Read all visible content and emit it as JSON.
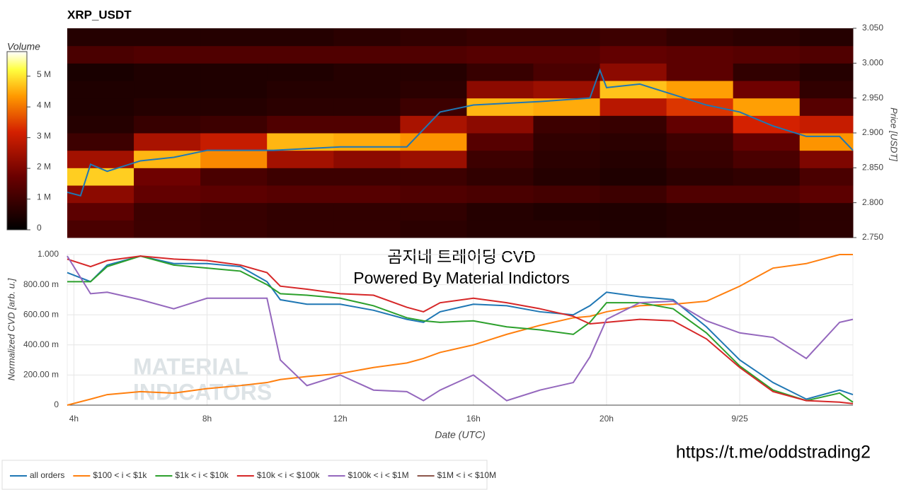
{
  "chart_data": [
    {
      "type": "heatmap",
      "title": "XRP_USDT",
      "colorbar_title": "Volume",
      "y_label": "Price [USDT]",
      "xlim": [
        3.8,
        27.4
      ],
      "x_edges": [
        3.8,
        5.8,
        7.8,
        9.8,
        11.8,
        13.8,
        15.8,
        17.8,
        19.8,
        21.8,
        23.8,
        25.8,
        27.4
      ],
      "y_edges": [
        2.75,
        2.775,
        2.8,
        2.825,
        2.85,
        2.875,
        2.9,
        2.925,
        2.95,
        2.975,
        3.0,
        3.025,
        3.05
      ],
      "z": [
        [
          1.2,
          1.0,
          0.9,
          0.8,
          0.8,
          0.7,
          0.6,
          0.6,
          0.5,
          0.6,
          0.6,
          0.7
        ],
        [
          1.5,
          1.0,
          0.9,
          0.8,
          0.8,
          0.8,
          0.6,
          0.5,
          0.5,
          0.6,
          0.6,
          0.7
        ],
        [
          2.2,
          1.6,
          1.5,
          1.4,
          1.4,
          1.3,
          1.2,
          1.1,
          1.0,
          1.3,
          1.3,
          1.5
        ],
        [
          4.8,
          1.8,
          1.2,
          1.0,
          1.0,
          1.0,
          0.8,
          0.6,
          0.5,
          0.7,
          0.8,
          1.2
        ],
        [
          2.5,
          4.6,
          4.2,
          2.5,
          2.2,
          2.4,
          1.0,
          0.7,
          0.6,
          0.9,
          1.2,
          2.0
        ],
        [
          1.0,
          2.6,
          3.0,
          4.6,
          4.5,
          4.3,
          1.4,
          0.8,
          0.7,
          1.0,
          1.6,
          4.3
        ],
        [
          0.6,
          0.9,
          1.0,
          1.3,
          1.3,
          2.6,
          2.2,
          1.0,
          0.9,
          1.6,
          3.2,
          3.0
        ],
        [
          0.5,
          0.6,
          0.6,
          0.7,
          0.7,
          1.0,
          4.6,
          4.5,
          2.8,
          3.4,
          4.4,
          1.4
        ],
        [
          0.5,
          0.5,
          0.5,
          0.6,
          0.6,
          0.7,
          2.2,
          2.4,
          4.7,
          4.4,
          1.8,
          0.8
        ],
        [
          0.4,
          0.5,
          0.5,
          0.5,
          0.6,
          0.6,
          0.9,
          1.2,
          2.2,
          1.5,
          0.8,
          0.6
        ],
        [
          1.2,
          1.3,
          1.3,
          1.3,
          1.3,
          1.3,
          1.4,
          1.4,
          1.6,
          1.5,
          1.4,
          1.3
        ],
        [
          0.6,
          0.6,
          0.6,
          0.6,
          0.7,
          0.8,
          0.9,
          0.9,
          1.0,
          0.8,
          0.7,
          0.6
        ]
      ],
      "zlim": [
        0,
        5.8
      ],
      "zticks": [
        0,
        {
          "value": 1,
          "label": "1 M"
        },
        {
          "value": 2,
          "label": "2 M"
        },
        {
          "value": 3,
          "label": "3 M"
        },
        {
          "value": 4,
          "label": "4 M"
        },
        {
          "value": 5,
          "label": "5 M"
        }
      ],
      "colorscale": [
        [
          0,
          "#000000"
        ],
        [
          0.3,
          "#6b0000"
        ],
        [
          0.55,
          "#d42000"
        ],
        [
          0.75,
          "#ff9900"
        ],
        [
          0.9,
          "#ffff40"
        ],
        [
          1,
          "#ffffff"
        ]
      ],
      "ylim": [
        2.75,
        3.05
      ],
      "yticks": [
        {
          "value": 2.75,
          "label": "2.750"
        },
        {
          "value": 2.8,
          "label": "2.800"
        },
        {
          "value": 2.85,
          "label": "2.850"
        },
        {
          "value": 2.9,
          "label": "2.900"
        },
        {
          "value": 2.95,
          "label": "2.950"
        },
        {
          "value": 3.0,
          "label": "3.000"
        },
        {
          "value": 3.05,
          "label": "3.050"
        }
      ],
      "line": {
        "color": "#1f77b4",
        "x": [
          3.8,
          4.2,
          4.5,
          5,
          6,
          7,
          8,
          10,
          12,
          14,
          14.5,
          15,
          16,
          18,
          19.5,
          19.8,
          20,
          21,
          22,
          23,
          24,
          25,
          26,
          27,
          27.4
        ],
        "values": [
          2.815,
          2.81,
          2.855,
          2.845,
          2.86,
          2.865,
          2.875,
          2.875,
          2.88,
          2.88,
          2.905,
          2.93,
          2.94,
          2.945,
          2.95,
          2.99,
          2.965,
          2.97,
          2.955,
          2.94,
          2.93,
          2.91,
          2.895,
          2.895,
          2.875
        ]
      }
    },
    {
      "type": "line",
      "title": "곰지네 트레이딩 CVD",
      "subtitle": "Powered By Material Indictors",
      "x_label": "Date (UTC)",
      "y_label": "Normalized CVD [arb. u.]",
      "grid": true,
      "legend": "bottom-left",
      "xlim": [
        3.8,
        27.4
      ],
      "xticks": [
        {
          "value": 4,
          "label": "4h"
        },
        {
          "value": 8,
          "label": "8h"
        },
        {
          "value": 12,
          "label": "12h"
        },
        {
          "value": 16,
          "label": "16h"
        },
        {
          "value": 20,
          "label": "20h"
        },
        {
          "value": 24,
          "label": "9/25"
        }
      ],
      "ylim": [
        0,
        1
      ],
      "yticks": [
        0,
        {
          "value": 0.2,
          "label": "200.00 m"
        },
        {
          "value": 0.4,
          "label": "400.00 m"
        },
        {
          "value": 0.6,
          "label": "600.00 m"
        },
        {
          "value": 0.8,
          "label": "800.00 m"
        },
        {
          "value": 1,
          "label": "1.000"
        }
      ],
      "x": [
        3.8,
        4.5,
        5,
        6,
        7,
        8,
        9,
        9.8,
        10.2,
        11,
        12,
        13,
        14,
        14.5,
        15,
        16,
        17,
        18,
        19,
        19.5,
        20,
        21,
        22,
        23,
        24,
        25,
        26,
        27,
        27.4
      ],
      "series": [
        {
          "name": "all orders",
          "color": "#1f77b4",
          "values": [
            0.88,
            0.82,
            0.93,
            0.99,
            0.94,
            0.94,
            0.92,
            0.82,
            0.7,
            0.67,
            0.67,
            0.63,
            0.57,
            0.55,
            0.62,
            0.67,
            0.66,
            0.62,
            0.6,
            0.66,
            0.75,
            0.72,
            0.7,
            0.52,
            0.3,
            0.15,
            0.04,
            0.1,
            0.07
          ]
        },
        {
          "name": "$100 < i < $1k",
          "color": "#ff7f0e",
          "values": [
            0.0,
            0.04,
            0.07,
            0.09,
            0.08,
            0.11,
            0.13,
            0.15,
            0.17,
            0.19,
            0.21,
            0.25,
            0.28,
            0.31,
            0.35,
            0.4,
            0.47,
            0.53,
            0.58,
            0.59,
            0.62,
            0.66,
            0.67,
            0.69,
            0.79,
            0.91,
            0.94,
            1.0,
            1.0
          ]
        },
        {
          "name": "$1k < i < $10k",
          "color": "#2ca02c",
          "values": [
            0.82,
            0.82,
            0.92,
            0.99,
            0.93,
            0.91,
            0.89,
            0.8,
            0.74,
            0.73,
            0.71,
            0.66,
            0.58,
            0.56,
            0.55,
            0.56,
            0.52,
            0.5,
            0.47,
            0.55,
            0.68,
            0.68,
            0.64,
            0.48,
            0.26,
            0.1,
            0.03,
            0.08,
            0.02
          ]
        },
        {
          "name": "$10k < i < $100k",
          "color": "#d62728",
          "values": [
            0.97,
            0.92,
            0.96,
            0.99,
            0.97,
            0.96,
            0.93,
            0.88,
            0.79,
            0.77,
            0.74,
            0.73,
            0.65,
            0.62,
            0.68,
            0.71,
            0.68,
            0.64,
            0.59,
            0.54,
            0.55,
            0.57,
            0.56,
            0.44,
            0.25,
            0.09,
            0.03,
            0.02,
            0.01
          ]
        },
        {
          "name": "$100k < i < $1M",
          "color": "#9467bd",
          "values": [
            0.99,
            0.74,
            0.75,
            0.7,
            0.64,
            0.71,
            0.71,
            0.71,
            0.3,
            0.13,
            0.2,
            0.1,
            0.09,
            0.03,
            0.1,
            0.2,
            0.03,
            0.1,
            0.15,
            0.32,
            0.57,
            0.68,
            0.69,
            0.56,
            0.48,
            0.45,
            0.31,
            0.55,
            0.57
          ]
        },
        {
          "name": "$1M < i < $10M",
          "color": "#8c564b",
          "values": [
            null,
            null,
            null,
            null,
            null,
            null,
            null,
            null,
            null,
            null,
            null,
            null,
            null,
            null,
            null,
            null,
            null,
            null,
            null,
            null,
            null,
            null,
            null,
            null,
            null,
            null,
            null,
            null,
            null
          ]
        }
      ]
    }
  ],
  "watermark": [
    "MATERIAL",
    "INDICATORS"
  ],
  "footer_link": "https://t.me/oddstrading2"
}
